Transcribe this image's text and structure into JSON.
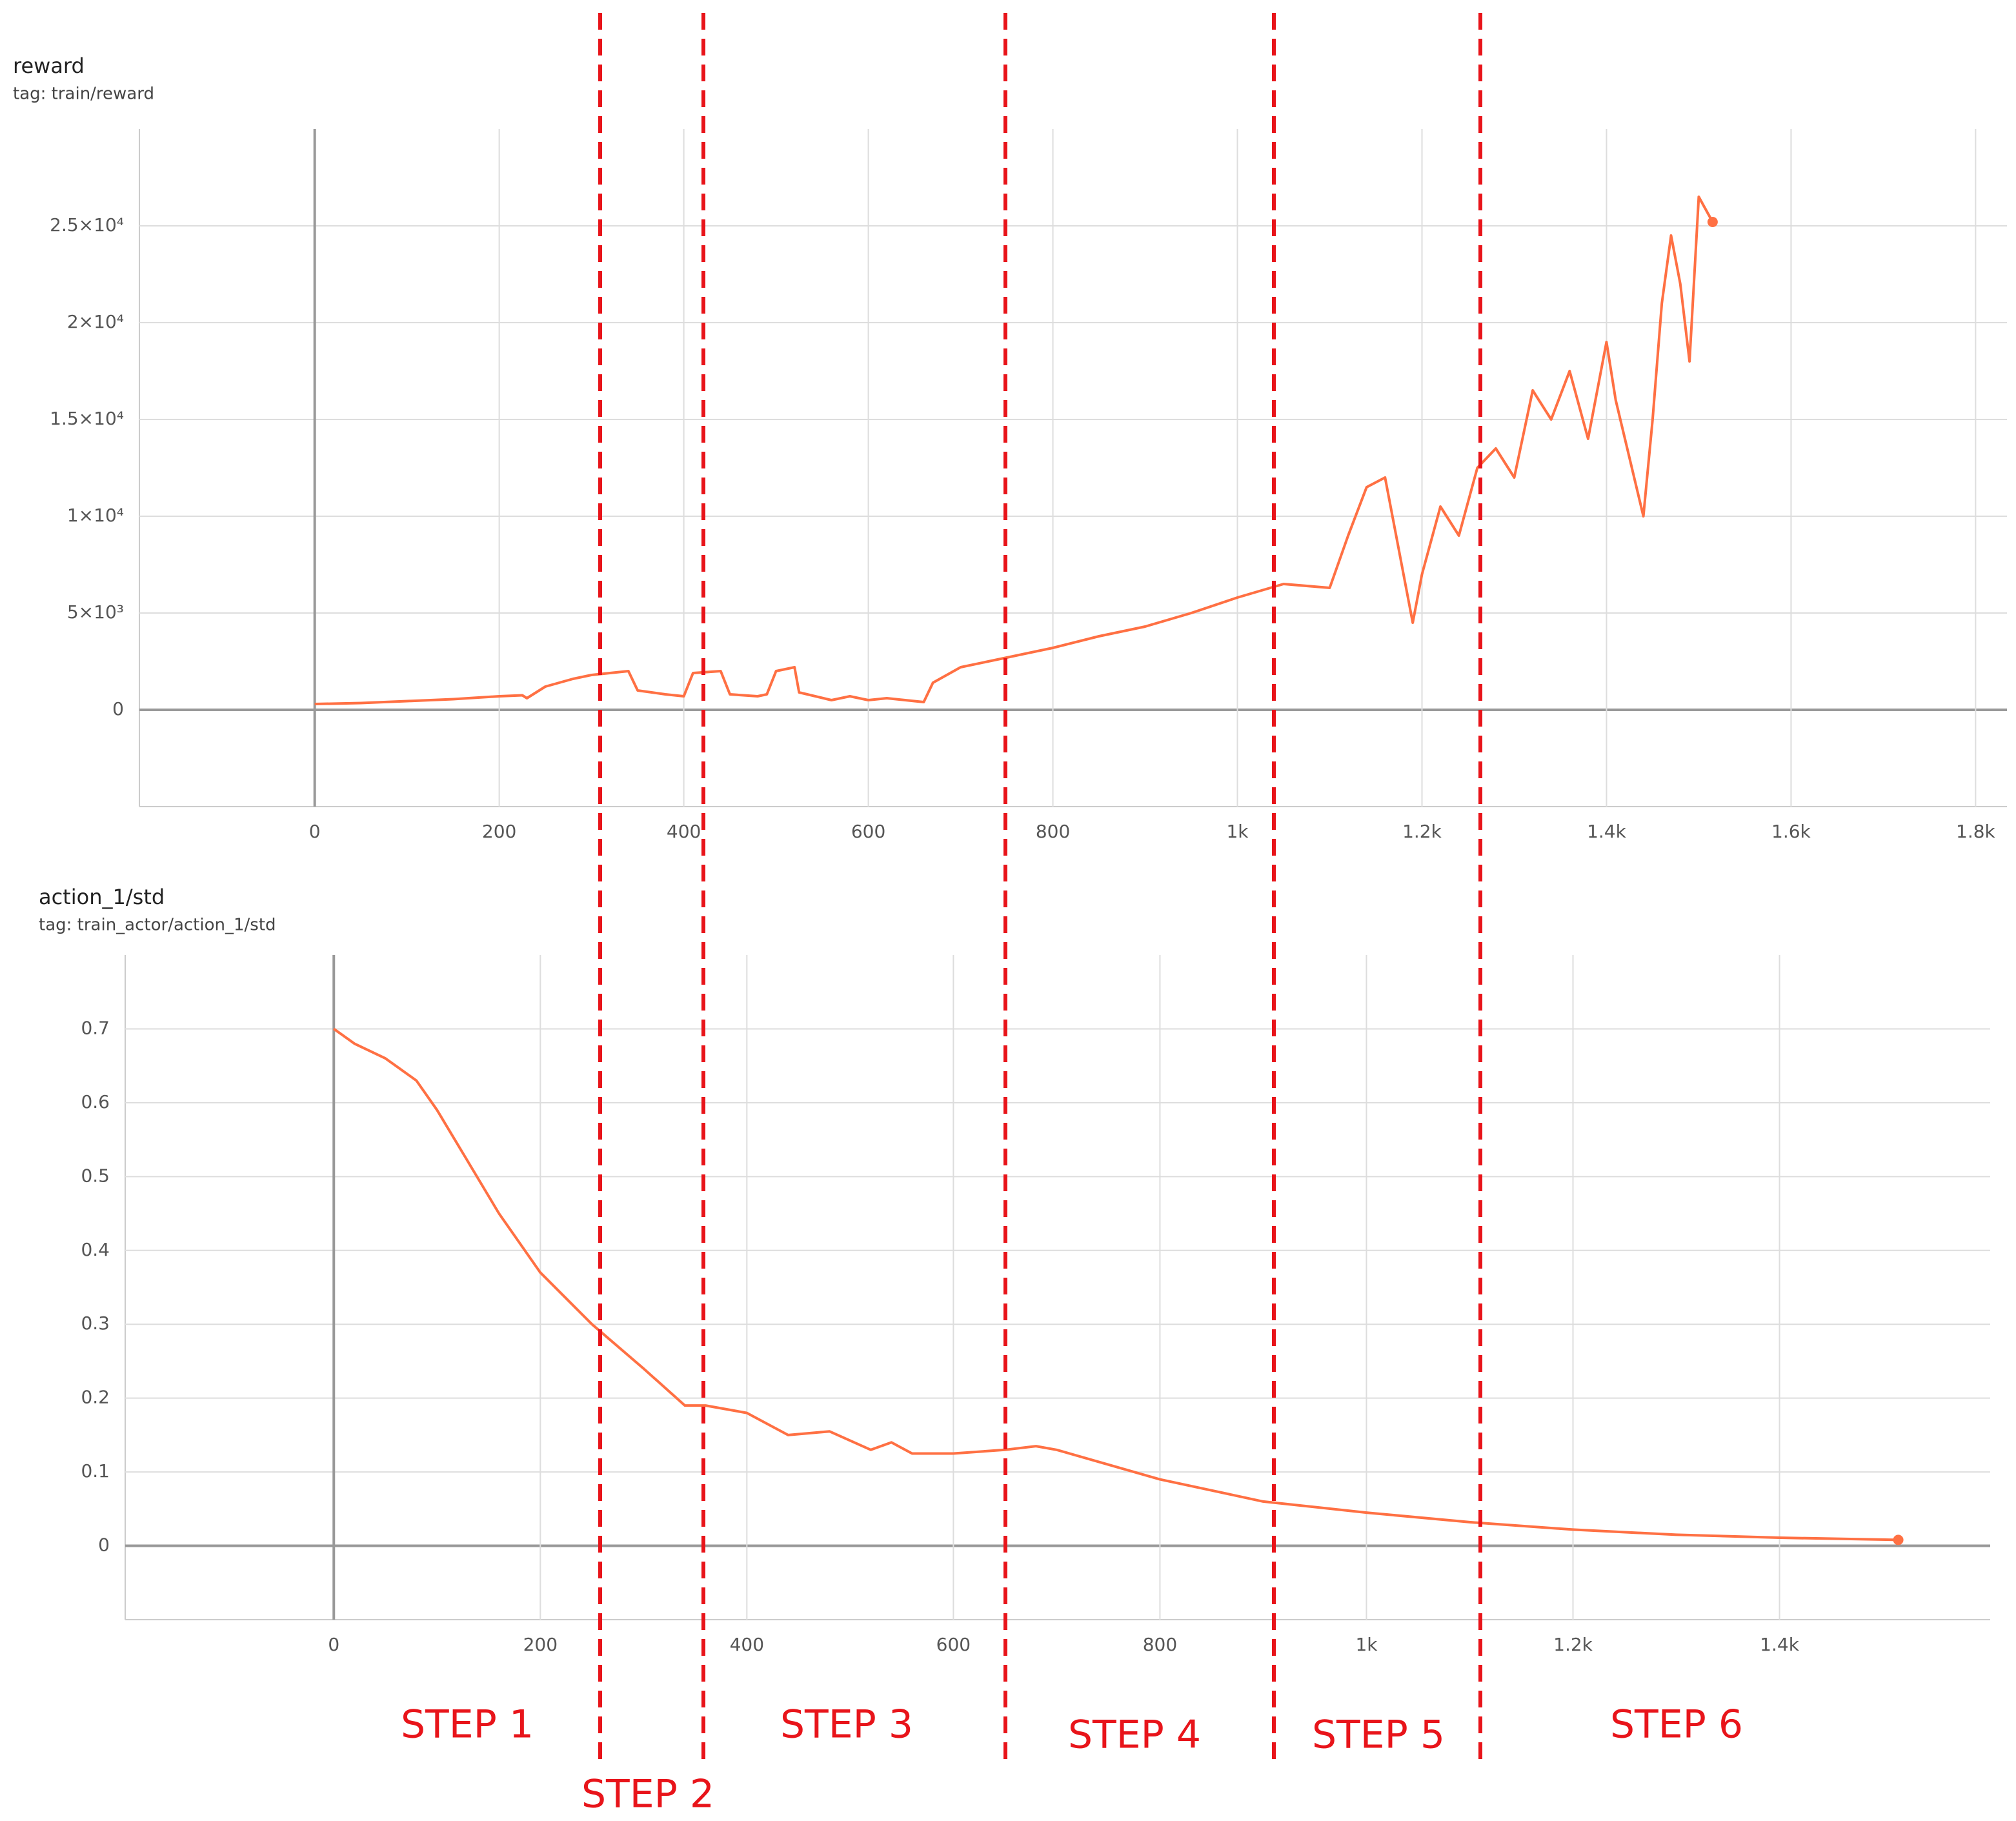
{
  "chart_data": [
    {
      "type": "line",
      "title": "reward",
      "subtitle": "tag: train/reward",
      "color": "#ff7043",
      "grid": true,
      "x": [
        0,
        50,
        100,
        150,
        200,
        225,
        230,
        250,
        280,
        300,
        340,
        350,
        380,
        400,
        410,
        440,
        450,
        480,
        490,
        500,
        520,
        525,
        560,
        580,
        600,
        620,
        640,
        660,
        670,
        700,
        750,
        800,
        850,
        900,
        950,
        1000,
        1050,
        1100,
        1120,
        1140,
        1160,
        1180,
        1190,
        1200,
        1220,
        1240,
        1260,
        1280,
        1300,
        1320,
        1340,
        1360,
        1380,
        1400,
        1410,
        1420,
        1440,
        1450,
        1460,
        1470,
        1480,
        1490,
        1500,
        1515
      ],
      "values": [
        300,
        350,
        450,
        550,
        700,
        750,
        600,
        1200,
        1600,
        1800,
        2000,
        1000,
        800,
        700,
        1900,
        2000,
        800,
        700,
        800,
        2000,
        2200,
        900,
        500,
        700,
        500,
        600,
        500,
        400,
        1400,
        2200,
        2700,
        3200,
        3800,
        4300,
        5000,
        5800,
        6500,
        6300,
        9000,
        11500,
        12000,
        7000,
        4500,
        7000,
        10500,
        9000,
        12500,
        13500,
        12000,
        16500,
        15000,
        17500,
        14000,
        19000,
        16000,
        14000,
        10000,
        15000,
        21000,
        24500,
        22000,
        18000,
        26500,
        25200
      ],
      "xlim": [
        -190,
        1834
      ],
      "ylim": [
        -5000,
        30000
      ],
      "xticks": [
        0,
        200,
        400,
        600,
        800,
        {
          "value": 1000,
          "label": "1k"
        },
        {
          "value": 1200,
          "label": "1.2k"
        },
        {
          "value": 1400,
          "label": "1.4k"
        },
        {
          "value": 1600,
          "label": "1.6k"
        },
        {
          "value": 1800,
          "label": "1.8k"
        }
      ],
      "yticks": [
        0,
        {
          "value": 5000,
          "label": "5×10³"
        },
        {
          "value": 10000,
          "label": "1×10⁴"
        },
        {
          "value": 15000,
          "label": "1.5×10⁴"
        },
        {
          "value": 20000,
          "label": "2×10⁴"
        },
        {
          "value": 25000,
          "label": "2.5×10⁴"
        }
      ]
    },
    {
      "type": "line",
      "title": "action_1/std",
      "subtitle": "tag: train_actor/action_1/std",
      "color": "#ff7043",
      "grid": true,
      "x": [
        0,
        20,
        50,
        80,
        100,
        130,
        160,
        200,
        250,
        300,
        340,
        360,
        400,
        440,
        480,
        520,
        540,
        560,
        600,
        650,
        680,
        700,
        750,
        800,
        850,
        900,
        1000,
        1100,
        1200,
        1300,
        1400,
        1515
      ],
      "values": [
        0.7,
        0.68,
        0.66,
        0.63,
        0.59,
        0.52,
        0.45,
        0.37,
        0.3,
        0.24,
        0.19,
        0.19,
        0.18,
        0.15,
        0.155,
        0.13,
        0.14,
        0.125,
        0.125,
        0.13,
        0.135,
        0.13,
        0.11,
        0.09,
        0.075,
        0.06,
        0.045,
        0.032,
        0.022,
        0.015,
        0.011,
        0.008
      ],
      "xlim": [
        -202,
        1604
      ],
      "ylim": [
        -0.1,
        0.8
      ],
      "xticks": [
        0,
        200,
        400,
        600,
        800,
        {
          "value": 1000,
          "label": "1k"
        },
        {
          "value": 1200,
          "label": "1.2k"
        },
        {
          "value": 1400,
          "label": "1.4k"
        }
      ],
      "yticks": [
        0,
        0.1,
        0.2,
        0.3,
        0.4,
        0.5,
        0.6,
        0.7
      ]
    }
  ],
  "annotations": [
    "STEP 1",
    "STEP 2",
    "STEP 3",
    "STEP 4",
    "STEP 5",
    "STEP 6"
  ]
}
